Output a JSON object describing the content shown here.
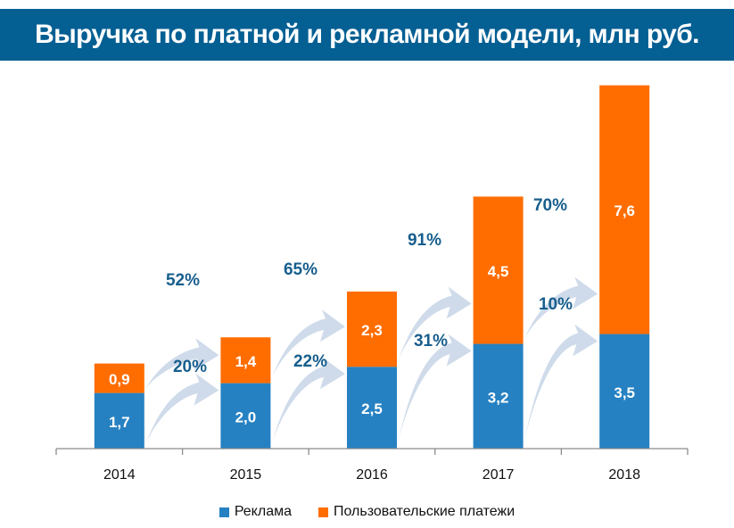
{
  "title": "Выручка по платной и рекламной модели, млн руб.",
  "colors": {
    "banner": "#045f93",
    "advertising": "#2681c2",
    "payments": "#ff6d00",
    "arrow": "#cfdbea",
    "growth_label": "#175e8d",
    "axis": "#8c8c8c"
  },
  "legend": [
    {
      "label": "Реклама",
      "series": "advertising"
    },
    {
      "label": "Пользовательские платежи",
      "series": "payments"
    }
  ],
  "chart_data": {
    "type": "bar",
    "stacked": true,
    "title": "Выручка по платной и рекламной модели, млн руб.",
    "xlabel": "",
    "ylabel": "",
    "categories": [
      "2014",
      "2015",
      "2016",
      "2017",
      "2018"
    ],
    "series": [
      {
        "name": "Реклама",
        "key": "advertising",
        "values": [
          1.7,
          2.0,
          2.5,
          3.2,
          3.5
        ],
        "labels": [
          "1,7",
          "2,0",
          "2,5",
          "3,2",
          "3,5"
        ]
      },
      {
        "name": "Пользовательские платежи",
        "key": "payments",
        "values": [
          0.9,
          1.4,
          2.3,
          4.5,
          7.6
        ],
        "labels": [
          "0,9",
          "1,4",
          "2,3",
          "4,5",
          "7,6"
        ]
      }
    ],
    "growth_annotations": {
      "payments": [
        "52%",
        "65%",
        "91%",
        "70%"
      ],
      "advertising": [
        "20%",
        "22%",
        "31%",
        "10%"
      ]
    },
    "ylim": [
      0,
      11.5
    ],
    "grid": false,
    "y_axis_visible": false,
    "legend_position": "bottom"
  }
}
